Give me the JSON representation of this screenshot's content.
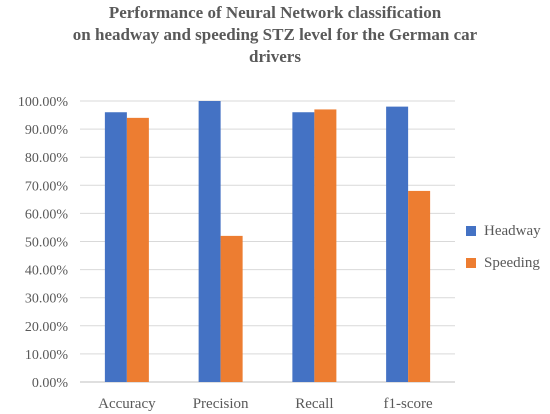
{
  "chart_data": {
    "type": "bar",
    "title_lines": [
      "Performance of Neural Network classification",
      "on headway and speeding STZ level for the German car",
      "drivers"
    ],
    "categories": [
      "Accuracy",
      "Precision",
      "Recall",
      "f1-score"
    ],
    "series": [
      {
        "name": "Headway",
        "color": "#4472C4",
        "values": [
          0.96,
          1.0,
          0.96,
          0.98
        ]
      },
      {
        "name": "Speeding",
        "color": "#ED7D31",
        "values": [
          0.94,
          0.52,
          0.97,
          0.68
        ]
      }
    ],
    "yticks": [
      "0.00%",
      "10.00%",
      "20.00%",
      "30.00%",
      "40.00%",
      "50.00%",
      "60.00%",
      "70.00%",
      "80.00%",
      "90.00%",
      "100.00%"
    ],
    "ylim": [
      0,
      1
    ],
    "grid": true,
    "legend_position": "right"
  }
}
